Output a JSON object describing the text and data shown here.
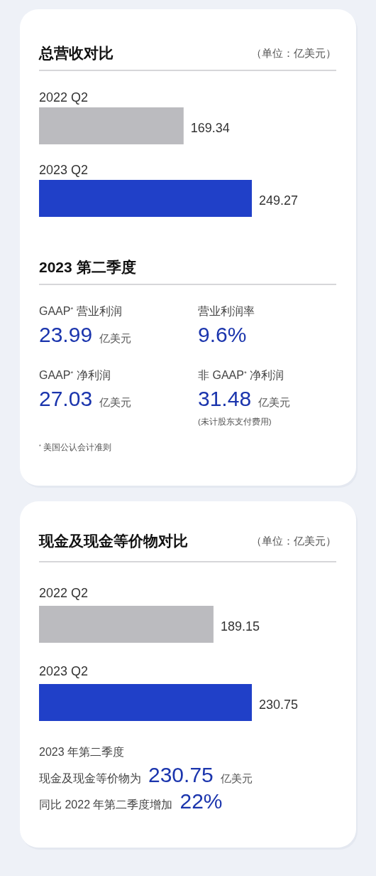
{
  "chart_data": [
    {
      "type": "bar",
      "orientation": "horizontal",
      "title": "总营收对比",
      "subtitle": "（单位：亿美元）",
      "categories": [
        "2022 Q2",
        "2023 Q2"
      ],
      "values": [
        169.34,
        249.27
      ],
      "colors": [
        "#bbbbbf",
        "#2040c8"
      ],
      "data_labels": true
    },
    {
      "type": "other",
      "title": "2023 第二季度",
      "annotations": [
        "GAAP$^{*}$ 营业利润",
        "23.99",
        "亿美元",
        "营业利润率",
        "9.6%",
        "GAAP$^{*}$ 净利润",
        "27.03",
        "亿美元",
        "非 GAAP$^{*}$ 净利润",
        "31.48",
        "亿美元",
        "(未计股东支付费用)",
        "$^{*}$ 美国公认会计准则"
      ]
    },
    {
      "type": "bar",
      "orientation": "horizontal",
      "title": "现金及现金等价物对比",
      "subtitle": "（单位：亿美元）",
      "categories": [
        "2022 Q2",
        "2023 Q2"
      ],
      "values": [
        189.15,
        230.75
      ],
      "colors": [
        "#bbbbbf",
        "#2040c8"
      ],
      "data_labels": true,
      "annotations": [
        "2023 年第二季度",
        "现金及现金等价物为",
        "230.75",
        "亿美元",
        "同比 2022 年第二季度增加",
        "22%"
      ]
    }
  ]
}
